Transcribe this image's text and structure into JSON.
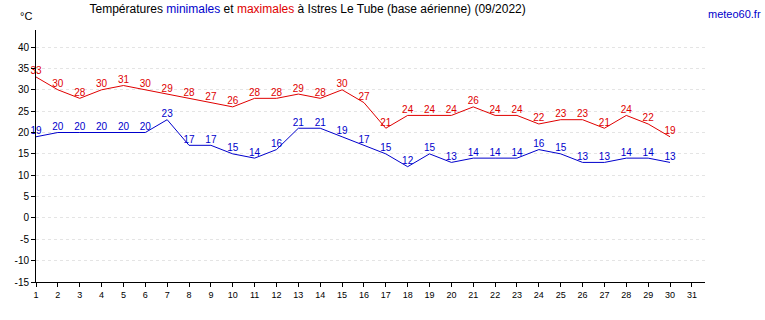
{
  "chart_data": {
    "type": "line",
    "title": "Températures minimales et maximales à Istres Le Tube (base aérienne) (09/2022)",
    "y_label": "°C",
    "annotations": [
      "meteo60.fr"
    ],
    "x": [
      1,
      2,
      3,
      4,
      5,
      6,
      7,
      8,
      9,
      10,
      11,
      12,
      13,
      14,
      15,
      16,
      17,
      18,
      19,
      20,
      21,
      22,
      23,
      24,
      25,
      26,
      27,
      28,
      29,
      30,
      31
    ],
    "series": [
      {
        "name": "minimales",
        "color": "#0000cc",
        "values": [
          19,
          20,
          20,
          20,
          20,
          20,
          23,
          17,
          17,
          15,
          14,
          16,
          21,
          21,
          19,
          17,
          15,
          12,
          15,
          13,
          14,
          14,
          14,
          16,
          15,
          13,
          13,
          14,
          14,
          13,
          null
        ]
      },
      {
        "name": "maximales",
        "color": "#e00000",
        "values": [
          33,
          30,
          28,
          30,
          31,
          30,
          29,
          28,
          27,
          26,
          28,
          28,
          29,
          28,
          30,
          27,
          21,
          24,
          24,
          24,
          26,
          24,
          24,
          22,
          23,
          23,
          21,
          24,
          22,
          19,
          null
        ]
      }
    ],
    "xlim": [
      1,
      31.6
    ],
    "xticks": [
      1,
      2,
      3,
      4,
      5,
      6,
      7,
      8,
      9,
      10,
      11,
      12,
      13,
      14,
      15,
      16,
      17,
      18,
      19,
      20,
      21,
      22,
      23,
      24,
      25,
      26,
      27,
      28,
      29,
      30,
      31
    ],
    "ylim": [
      -15,
      44
    ],
    "yticks": [
      -15,
      -10,
      -5,
      0,
      5,
      10,
      15,
      20,
      25,
      30,
      35,
      40
    ],
    "grid": true,
    "data_labels": true
  }
}
